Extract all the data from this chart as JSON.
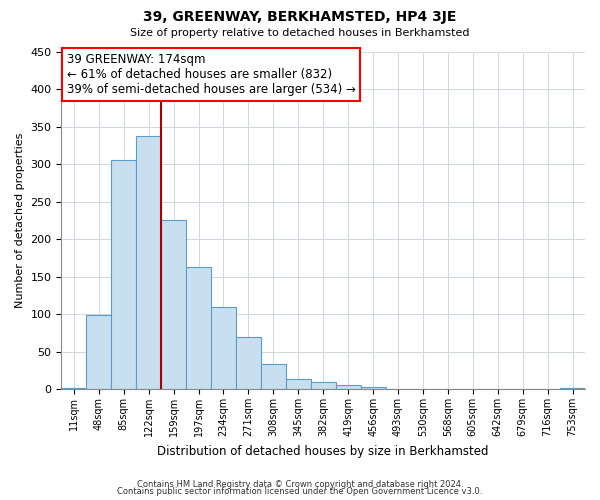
{
  "title": "39, GREENWAY, BERKHAMSTED, HP4 3JE",
  "subtitle": "Size of property relative to detached houses in Berkhamsted",
  "xlabel": "Distribution of detached houses by size in Berkhamsted",
  "ylabel": "Number of detached properties",
  "footnote1": "Contains HM Land Registry data © Crown copyright and database right 2024.",
  "footnote2": "Contains public sector information licensed under the Open Government Licence v3.0.",
  "bar_labels": [
    "11sqm",
    "48sqm",
    "85sqm",
    "122sqm",
    "159sqm",
    "197sqm",
    "234sqm",
    "271sqm",
    "308sqm",
    "345sqm",
    "382sqm",
    "419sqm",
    "456sqm",
    "493sqm",
    "530sqm",
    "568sqm",
    "605sqm",
    "642sqm",
    "679sqm",
    "716sqm",
    "753sqm"
  ],
  "bar_values": [
    2,
    99,
    305,
    337,
    226,
    163,
    109,
    69,
    34,
    13,
    10,
    5,
    3,
    0,
    0,
    0,
    0,
    0,
    0,
    0,
    2
  ],
  "bar_color": "#c8dff0",
  "bar_edge_color": "#5b9dc9",
  "ylim": [
    0,
    450
  ],
  "yticks": [
    0,
    50,
    100,
    150,
    200,
    250,
    300,
    350,
    400,
    450
  ],
  "marker_label": "39 GREENWAY: 174sqm",
  "annotation_line1": "← 61% of detached houses are smaller (832)",
  "annotation_line2": "39% of semi-detached houses are larger (534) →",
  "vline_color": "#aa0000",
  "vline_x": 3.5
}
